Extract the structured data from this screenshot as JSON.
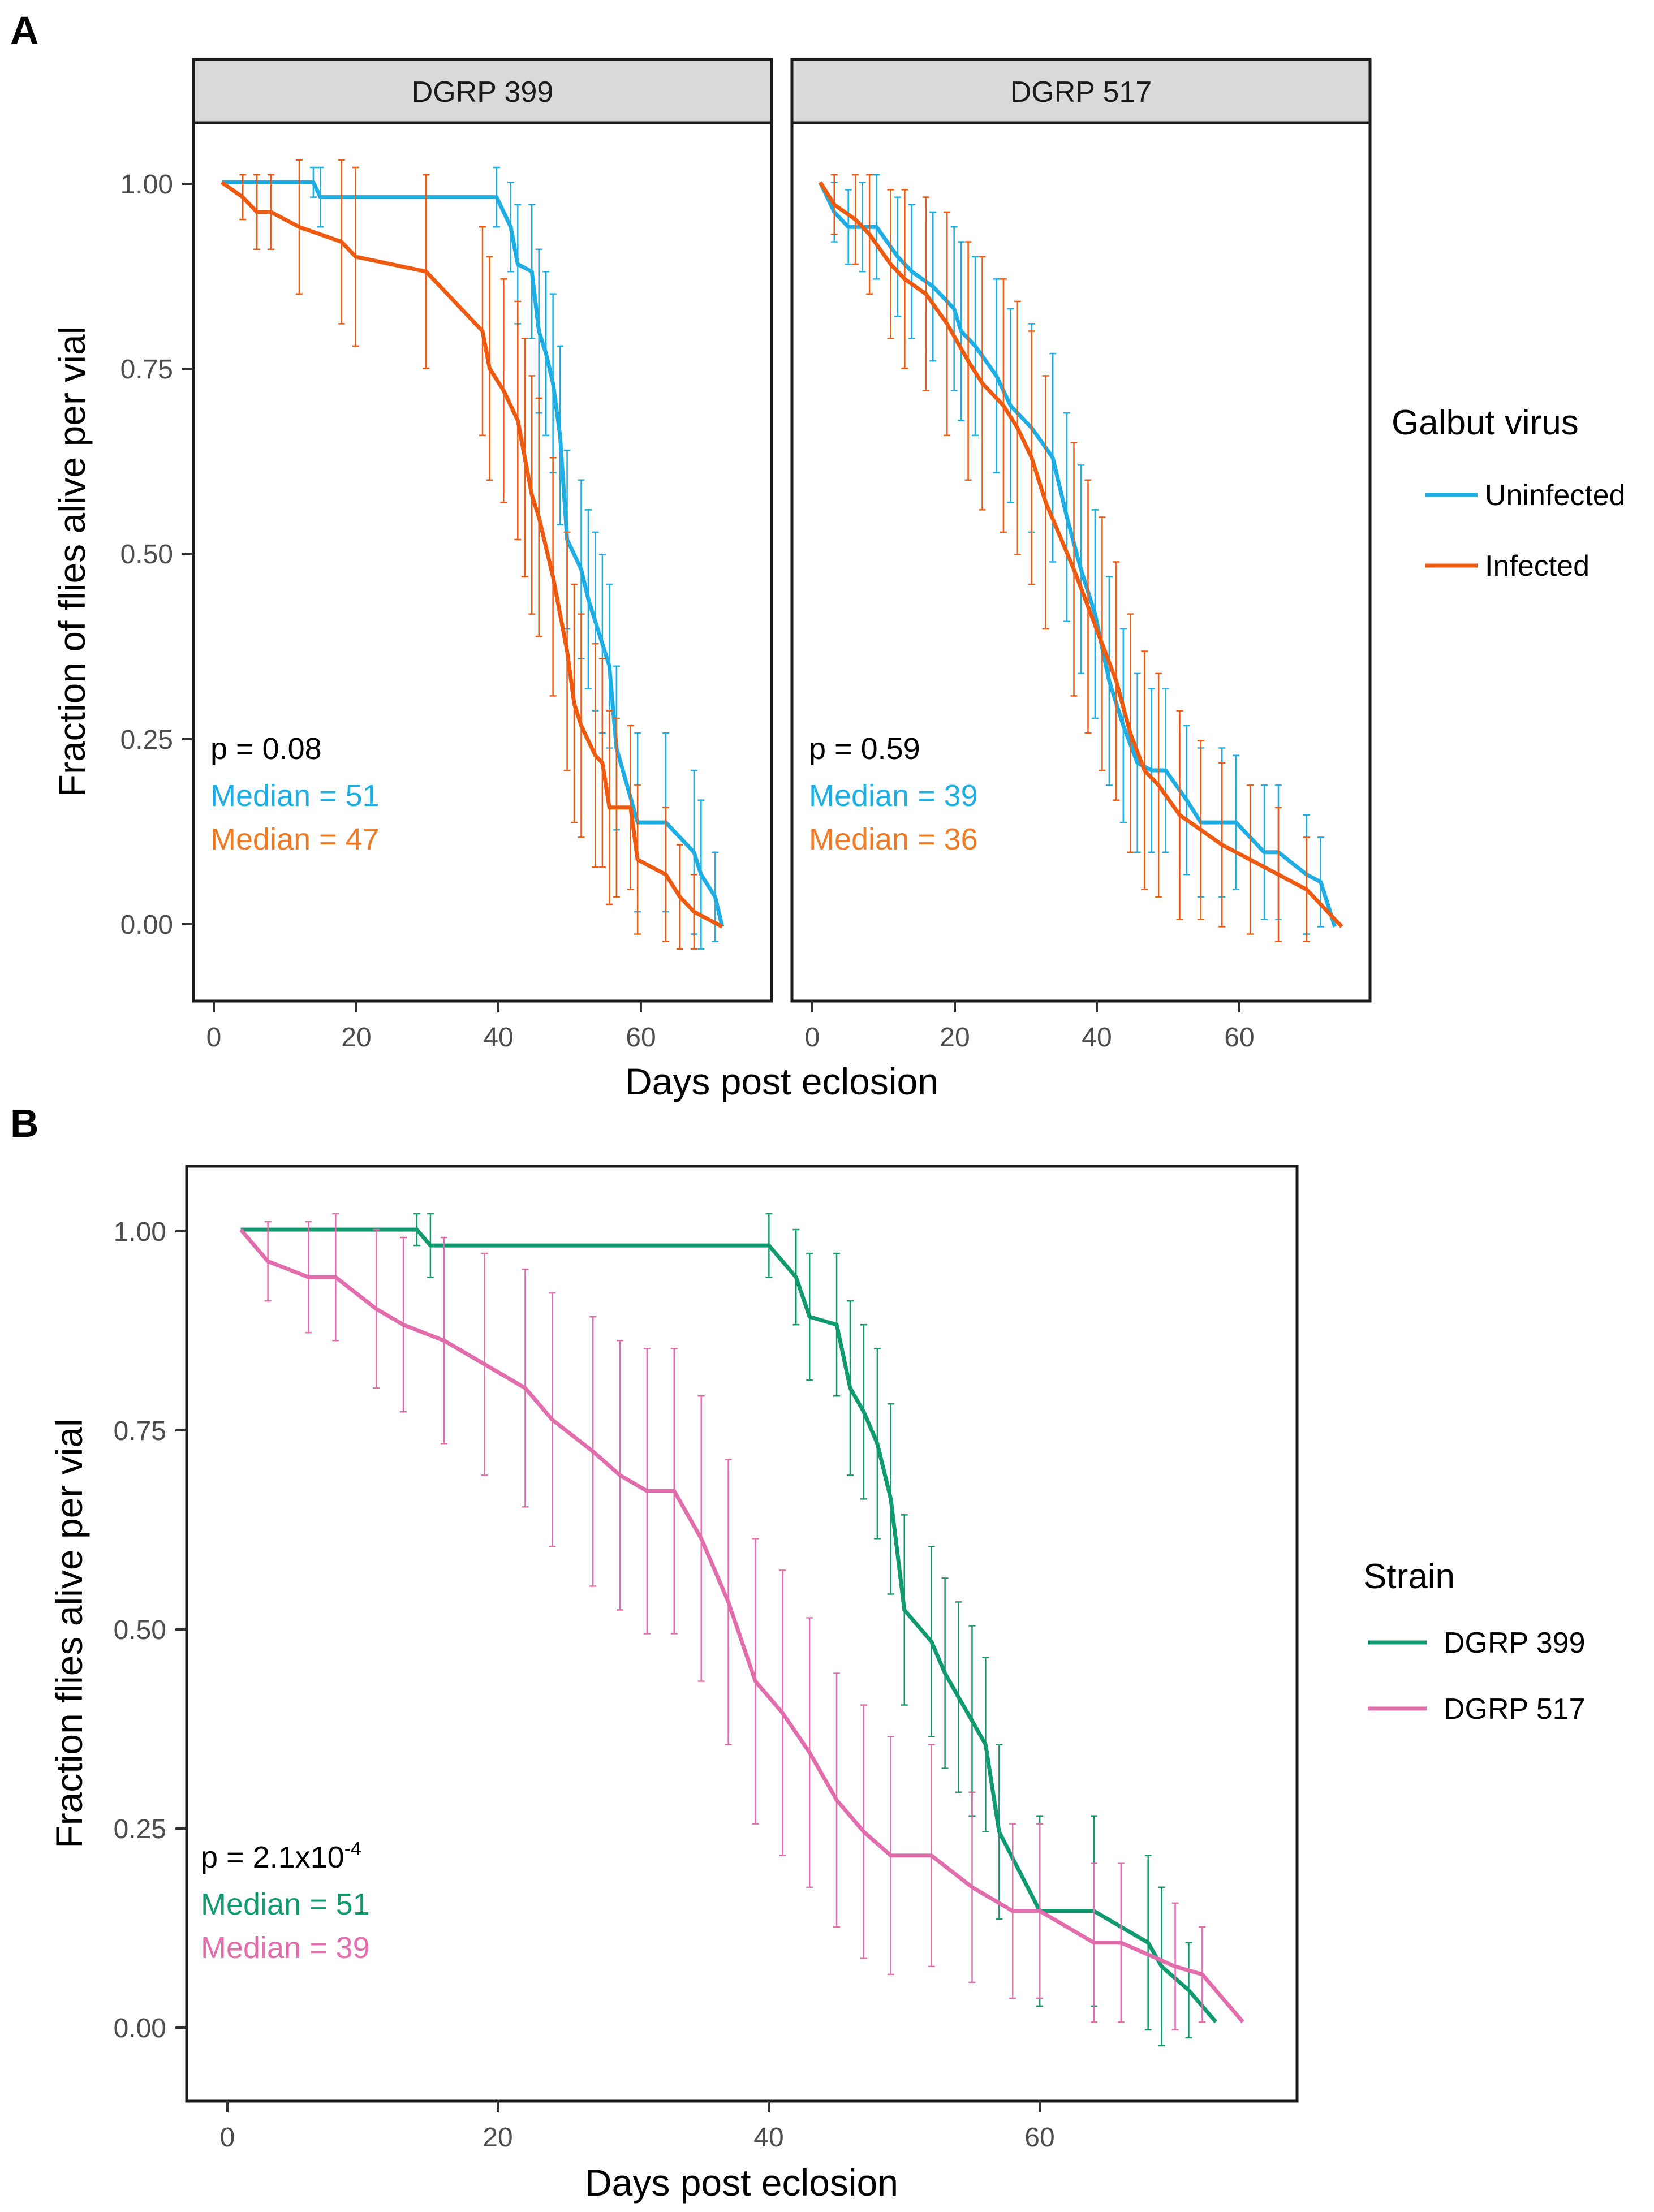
{
  "panel_letters": {
    "a": "A",
    "b": "B"
  },
  "colors": {
    "uninfected": "#1eaee4",
    "infected": "#ef5a11",
    "dgrp399": "#119a6f",
    "dgrp517": "#e16dac",
    "black": "#000000"
  },
  "chart_data": [
    {
      "id": "A",
      "type": "line",
      "subtype": "step-survival-with-errorbars",
      "facets": [
        "DGRP 399",
        "DGRP 517"
      ],
      "xlabel": "Days post eclosion",
      "ylabel": "Fraction of flies alive per vial",
      "xticks": [
        0,
        20,
        40,
        60
      ],
      "yticks": [
        "0.00",
        "0.25",
        "0.50",
        "0.75",
        "1.00"
      ],
      "xlim": [
        -3,
        79
      ],
      "ylim": [
        -0.1,
        1.08
      ],
      "legend": {
        "title": "Galbut virus",
        "position": "right",
        "entries": [
          "Uninfected",
          "Infected"
        ]
      },
      "panels": [
        {
          "facet": "DGRP 399",
          "annotations": {
            "p": "p = 0.08",
            "median_uninfected": "Median = 51",
            "median_infected": "Median = 47"
          },
          "series": [
            {
              "name": "Uninfected",
              "color": "#1eaee4",
              "x": [
                1,
                14,
                15,
                40,
                42,
                43,
                45,
                46,
                47,
                48,
                49,
                50,
                52,
                53,
                54,
                55,
                56,
                57,
                60,
                64,
                68,
                69,
                71,
                72
              ],
              "y": [
                1.0,
                1.0,
                0.98,
                0.98,
                0.94,
                0.89,
                0.88,
                0.8,
                0.77,
                0.73,
                0.66,
                0.52,
                0.48,
                0.44,
                0.41,
                0.38,
                0.35,
                0.24,
                0.14,
                0.14,
                0.1,
                0.07,
                0.04,
                0.0
              ],
              "err": [
                0,
                0.02,
                0.04,
                0.04,
                0.06,
                0.08,
                0.09,
                0.11,
                0.11,
                0.12,
                0.12,
                0.12,
                0.12,
                0.12,
                0.12,
                0.12,
                0.11,
                0.11,
                0.12,
                0.12,
                0.11,
                0.1,
                0.06,
                0.0
              ]
            },
            {
              "name": "Infected",
              "color": "#ef5a11",
              "x": [
                1,
                4,
                6,
                8,
                12,
                18,
                20,
                30,
                38,
                39,
                41,
                43,
                44,
                45,
                46,
                48,
                50,
                51,
                52,
                54,
                55,
                56,
                57,
                59,
                60,
                64,
                66,
                68,
                72
              ],
              "y": [
                1.0,
                0.98,
                0.96,
                0.96,
                0.94,
                0.92,
                0.9,
                0.88,
                0.8,
                0.75,
                0.72,
                0.68,
                0.63,
                0.58,
                0.55,
                0.47,
                0.37,
                0.3,
                0.27,
                0.23,
                0.22,
                0.16,
                0.16,
                0.16,
                0.09,
                0.07,
                0.04,
                0.02,
                0.0
              ],
              "err": [
                0,
                0.03,
                0.05,
                0.05,
                0.09,
                0.11,
                0.12,
                0.13,
                0.14,
                0.15,
                0.15,
                0.16,
                0.16,
                0.16,
                0.16,
                0.16,
                0.16,
                0.16,
                0.15,
                0.15,
                0.14,
                0.13,
                0.12,
                0.11,
                0.1,
                0.09,
                0.07,
                0.05,
                0.0
              ]
            }
          ]
        },
        {
          "facet": "DGRP 517",
          "annotations": {
            "p": "p = 0.59",
            "median_uninfected": "Median = 39",
            "median_infected": "Median = 36"
          },
          "series": [
            {
              "name": "Uninfected",
              "color": "#1eaee4",
              "x": [
                1,
                3,
                5,
                7,
                9,
                12,
                14,
                17,
                20,
                21,
                23,
                26,
                28,
                31,
                34,
                36,
                38,
                40,
                42,
                44,
                46,
                48,
                50,
                53,
                55,
                58,
                60,
                64,
                66,
                70,
                72,
                74
              ],
              "y": [
                1.0,
                0.96,
                0.94,
                0.94,
                0.94,
                0.9,
                0.88,
                0.86,
                0.83,
                0.8,
                0.78,
                0.74,
                0.7,
                0.67,
                0.63,
                0.55,
                0.48,
                0.42,
                0.33,
                0.27,
                0.22,
                0.21,
                0.21,
                0.17,
                0.14,
                0.14,
                0.14,
                0.1,
                0.1,
                0.07,
                0.06,
                0.0
              ],
              "err": [
                0,
                0.04,
                0.05,
                0.06,
                0.07,
                0.08,
                0.09,
                0.1,
                0.11,
                0.12,
                0.12,
                0.13,
                0.13,
                0.14,
                0.14,
                0.14,
                0.14,
                0.14,
                0.14,
                0.13,
                0.12,
                0.11,
                0.11,
                0.1,
                0.1,
                0.1,
                0.09,
                0.09,
                0.09,
                0.08,
                0.06,
                0.0
              ]
            },
            {
              "name": "Infected",
              "color": "#ef5a11",
              "x": [
                1,
                3,
                6,
                8,
                11,
                13,
                16,
                19,
                22,
                24,
                27,
                29,
                31,
                33,
                37,
                39,
                41,
                43,
                45,
                47,
                49,
                52,
                55,
                58,
                62,
                66,
                70,
                75
              ],
              "y": [
                1.0,
                0.97,
                0.95,
                0.93,
                0.89,
                0.87,
                0.85,
                0.81,
                0.76,
                0.73,
                0.7,
                0.67,
                0.63,
                0.57,
                0.48,
                0.43,
                0.38,
                0.33,
                0.26,
                0.21,
                0.19,
                0.15,
                0.13,
                0.11,
                0.09,
                0.07,
                0.05,
                0.0
              ],
              "err": [
                0,
                0.04,
                0.06,
                0.08,
                0.1,
                0.12,
                0.13,
                0.15,
                0.16,
                0.17,
                0.17,
                0.17,
                0.17,
                0.17,
                0.17,
                0.17,
                0.17,
                0.16,
                0.16,
                0.16,
                0.15,
                0.14,
                0.12,
                0.11,
                0.1,
                0.09,
                0.07,
                0.0
              ]
            }
          ]
        }
      ]
    },
    {
      "id": "B",
      "type": "line",
      "subtype": "step-survival-with-errorbars",
      "xlabel": "Days post eclosion",
      "ylabel": "Fraction flies alive per vial",
      "xticks": [
        0,
        20,
        40,
        60
      ],
      "yticks": [
        "0.00",
        "0.25",
        "0.50",
        "0.75",
        "1.00"
      ],
      "xlim": [
        -3,
        79
      ],
      "ylim": [
        -0.1,
        1.08
      ],
      "legend": {
        "title": "Strain",
        "position": "right",
        "entries": [
          "DGRP 399",
          "DGRP 517"
        ]
      },
      "annotations": {
        "p_prefix": "p = 2.1x10",
        "p_exponent": "-4",
        "median_399": "Median = 51",
        "median_517": "Median = 39"
      },
      "series": [
        {
          "name": "DGRP 399",
          "color": "#119a6f",
          "x": [
            1,
            14,
            15,
            40,
            42,
            43,
            45,
            46,
            47,
            48,
            49,
            50,
            52,
            53,
            54,
            55,
            56,
            57,
            60,
            64,
            68,
            69,
            71,
            73
          ],
          "y": [
            1.0,
            1.0,
            0.98,
            0.98,
            0.94,
            0.89,
            0.88,
            0.8,
            0.77,
            0.73,
            0.66,
            0.52,
            0.48,
            0.44,
            0.41,
            0.38,
            0.35,
            0.24,
            0.14,
            0.14,
            0.1,
            0.07,
            0.04,
            0.0
          ],
          "err": [
            0,
            0.02,
            0.04,
            0.04,
            0.06,
            0.08,
            0.09,
            0.11,
            0.11,
            0.12,
            0.12,
            0.12,
            0.12,
            0.12,
            0.12,
            0.12,
            0.11,
            0.11,
            0.12,
            0.12,
            0.11,
            0.1,
            0.06,
            0.0
          ]
        },
        {
          "name": "DGRP 517",
          "color": "#e16dac",
          "x": [
            1,
            3,
            6,
            8,
            11,
            13,
            16,
            19,
            22,
            24,
            27,
            29,
            31,
            33,
            35,
            37,
            39,
            41,
            43,
            45,
            47,
            49,
            52,
            55,
            58,
            60,
            64,
            66,
            70,
            72,
            75
          ],
          "y": [
            1.0,
            0.96,
            0.94,
            0.94,
            0.9,
            0.88,
            0.86,
            0.83,
            0.8,
            0.76,
            0.72,
            0.69,
            0.67,
            0.67,
            0.61,
            0.53,
            0.43,
            0.39,
            0.34,
            0.28,
            0.24,
            0.21,
            0.21,
            0.17,
            0.14,
            0.14,
            0.1,
            0.1,
            0.07,
            0.06,
            0.0
          ],
          "err": [
            0,
            0.05,
            0.07,
            0.08,
            0.1,
            0.11,
            0.13,
            0.14,
            0.15,
            0.16,
            0.17,
            0.17,
            0.18,
            0.18,
            0.18,
            0.18,
            0.18,
            0.18,
            0.17,
            0.16,
            0.16,
            0.15,
            0.14,
            0.12,
            0.11,
            0.11,
            0.1,
            0.1,
            0.08,
            0.06,
            0.0
          ]
        }
      ]
    }
  ]
}
